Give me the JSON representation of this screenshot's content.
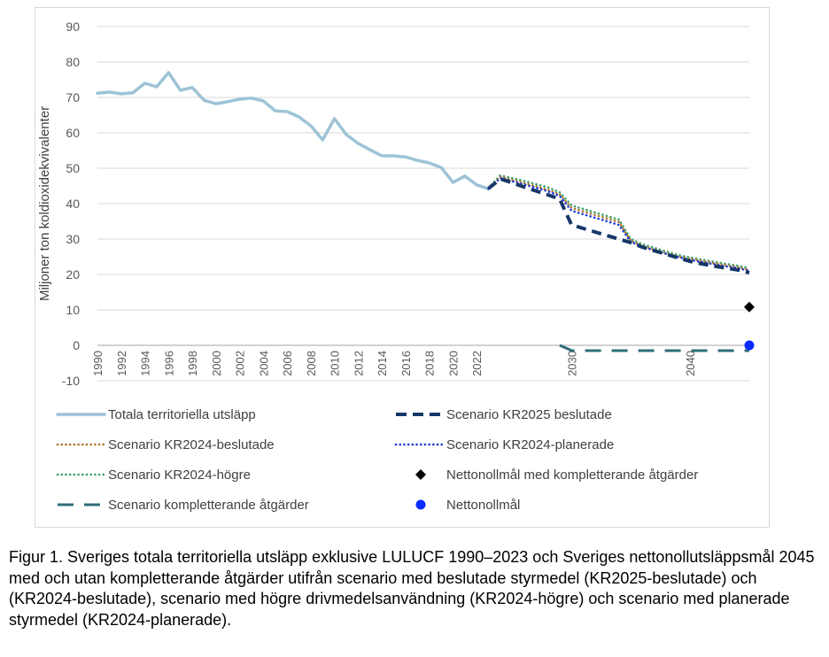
{
  "caption": "Figur 1. Sveriges totala territoriella utsläpp exklusive LULUCF 1990–2023 och Sveriges nettonollutsläppsmål 2045 med och utan kompletterande åtgärder utifrån scenario med beslutade styrmedel (KR2025-beslutade) och (KR2024-beslutade), scenario med högre drivmedelsanvändning (KR2024-högre) och scenario med planerade styrmedel (KR2024-planerade).",
  "chart_data": {
    "type": "line",
    "title": "",
    "xlabel": "",
    "ylabel": "Miljoner ton koldioxidekvivalenter",
    "xlim": [
      1990,
      2045
    ],
    "ylim": [
      -10,
      90
    ],
    "yticks": [
      -10,
      0,
      10,
      20,
      30,
      40,
      50,
      60,
      70,
      80,
      90
    ],
    "xticks": [
      "1990",
      "1992",
      "1994",
      "1996",
      "1998",
      "2000",
      "2002",
      "2004",
      "2006",
      "2008",
      "2010",
      "2012",
      "2014",
      "2016",
      "2018",
      "2020",
      "2022",
      "2030",
      "2040"
    ],
    "grid": "horizontal",
    "legend_position": "bottom",
    "series": [
      {
        "name": "Totala territoriella utsläpp",
        "color": "#9dc3d6",
        "style": "solid",
        "x": [
          1990,
          1991,
          1992,
          1993,
          1994,
          1995,
          1996,
          1997,
          1998,
          1999,
          2000,
          2001,
          2002,
          2003,
          2004,
          2005,
          2006,
          2007,
          2008,
          2009,
          2010,
          2011,
          2012,
          2013,
          2014,
          2015,
          2016,
          2017,
          2018,
          2019,
          2020,
          2021,
          2022,
          2023
        ],
        "y": [
          71.2,
          71.5,
          71.0,
          71.3,
          74.0,
          73.0,
          77.0,
          72.0,
          72.8,
          69.2,
          68.2,
          68.8,
          69.5,
          69.8,
          69.0,
          66.2,
          66.0,
          64.5,
          62.0,
          58.0,
          64.0,
          59.5,
          57.0,
          55.2,
          53.5,
          53.5,
          53.2,
          52.2,
          51.5,
          50.2,
          46.0,
          47.8,
          45.3,
          44.2
        ]
      },
      {
        "name": "Scenario KR2024-högre",
        "color": "#3aa06a",
        "style": "dotted",
        "x": [
          2023,
          2024,
          2025,
          2026,
          2027,
          2028,
          2029,
          2030,
          2031,
          2032,
          2033,
          2034,
          2035,
          2036,
          2037,
          2038,
          2039,
          2040,
          2041,
          2042,
          2043,
          2044,
          2045
        ],
        "y": [
          44.5,
          48.0,
          47.2,
          46.4,
          45.5,
          44.6,
          43.2,
          39.5,
          38.5,
          37.5,
          36.5,
          35.5,
          30.0,
          28.5,
          27.5,
          26.5,
          25.5,
          24.8,
          24.2,
          23.6,
          23.0,
          22.5,
          21.8
        ]
      },
      {
        "name": "Scenario KR2024-beslutade",
        "color": "#b5762a",
        "style": "dotted",
        "x": [
          2023,
          2024,
          2025,
          2026,
          2027,
          2028,
          2029,
          2030,
          2031,
          2032,
          2033,
          2034,
          2035,
          2036,
          2037,
          2038,
          2039,
          2040,
          2041,
          2042,
          2043,
          2044,
          2045
        ],
        "y": [
          44.3,
          47.6,
          46.7,
          45.8,
          44.9,
          43.9,
          42.6,
          38.8,
          37.8,
          36.8,
          35.8,
          34.8,
          29.5,
          28.0,
          27.0,
          26.0,
          25.1,
          24.4,
          23.8,
          23.2,
          22.6,
          22.1,
          21.3
        ]
      },
      {
        "name": "Scenario KR2024-planerade",
        "color": "#1e3ae0",
        "style": "dotted",
        "x": [
          2023,
          2024,
          2025,
          2026,
          2027,
          2028,
          2029,
          2030,
          2031,
          2032,
          2033,
          2034,
          2035,
          2036,
          2037,
          2038,
          2039,
          2040,
          2041,
          2042,
          2043,
          2044,
          2045
        ],
        "y": [
          44.2,
          47.2,
          46.3,
          45.4,
          44.5,
          43.5,
          42.2,
          38.0,
          37.0,
          36.0,
          35.0,
          34.0,
          29.2,
          27.8,
          26.8,
          25.8,
          24.9,
          24.1,
          23.5,
          22.9,
          22.3,
          21.8,
          21.0
        ]
      },
      {
        "name": "Scenario KR2025 beslutade",
        "color": "#163769",
        "style": "dashed",
        "x": [
          2023,
          2024,
          2025,
          2026,
          2027,
          2028,
          2029,
          2030,
          2031,
          2032,
          2033,
          2034,
          2035,
          2036,
          2037,
          2038,
          2039,
          2040,
          2041,
          2042,
          2043,
          2044,
          2045
        ],
        "y": [
          44.3,
          47.0,
          45.9,
          44.7,
          43.6,
          42.5,
          41.3,
          34.0,
          33.0,
          32.0,
          31.0,
          30.0,
          29.0,
          27.7,
          26.7,
          25.7,
          24.7,
          23.7,
          23.0,
          22.4,
          21.8,
          21.3,
          20.5
        ]
      },
      {
        "name": "Scenario kompletterande åtgärder",
        "color": "#2e6e79",
        "style": "longdash",
        "x": [
          2029,
          2029.7,
          2030,
          2035,
          2040,
          2045
        ],
        "y": [
          0,
          -1.0,
          -1.5,
          -1.5,
          -1.5,
          -1.5
        ]
      }
    ],
    "markers": [
      {
        "name": "Nettonollmål med kompletterande åtgärder",
        "color": "#000000",
        "shape": "diamond",
        "x": 2045,
        "y": 10.8
      },
      {
        "name": "Nettonollmål",
        "color": "#0a2bff",
        "shape": "circle",
        "x": 2045,
        "y": 0
      }
    ],
    "legend": [
      {
        "label": "Totala territoriella utsläpp",
        "kind": "solid",
        "color": "#9dc3d6"
      },
      {
        "label": "Scenario KR2025 beslutade",
        "kind": "dashed",
        "color": "#163769"
      },
      {
        "label": "Scenario KR2024-beslutade",
        "kind": "dotted",
        "color": "#b5762a"
      },
      {
        "label": "Scenario KR2024-planerade",
        "kind": "dotted",
        "color": "#1e3ae0"
      },
      {
        "label": "Scenario KR2024-högre",
        "kind": "dotted",
        "color": "#3aa06a"
      },
      {
        "label": "Nettonollmål med kompletterande åtgärder",
        "kind": "diamond",
        "color": "#000000"
      },
      {
        "label": "Scenario kompletterande åtgärder",
        "kind": "longdash",
        "color": "#2e6e79"
      },
      {
        "label": "Nettonollmål",
        "kind": "circle",
        "color": "#0a2bff"
      }
    ]
  }
}
